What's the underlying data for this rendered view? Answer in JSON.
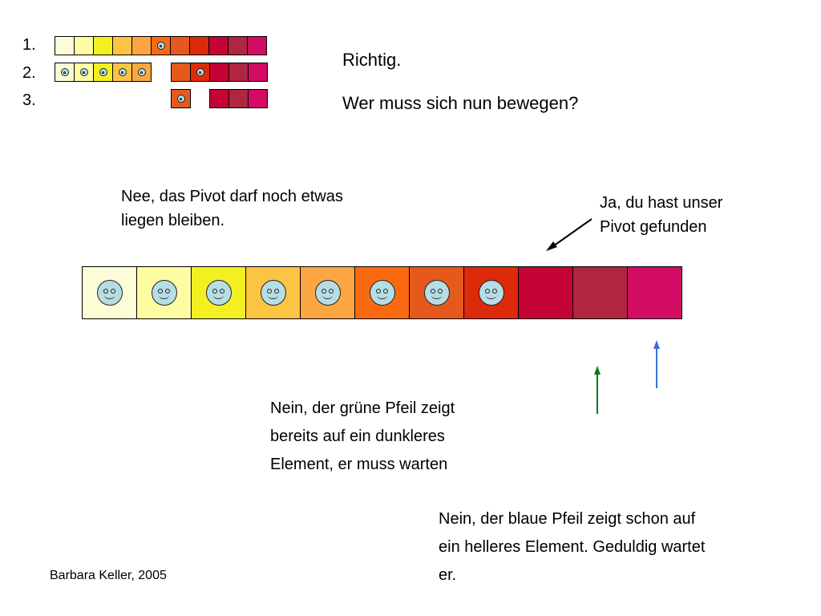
{
  "rows": {
    "labels": [
      "1.",
      "2.",
      "3."
    ]
  },
  "colors": {
    "shades": [
      "#fdfcd6",
      "#fdfca2",
      "#f3f022",
      "#fbc443",
      "#fba643",
      "#f96a10",
      "#e55a1c",
      "#dd2a0a",
      "#c50334",
      "#b02540",
      "#d20c62"
    ]
  },
  "headline": {
    "line1": "Richtig.",
    "line2": "Wer muss sich nun bewegen?"
  },
  "annotations": {
    "pivot_wait": [
      "Nee, das Pivot darf noch etwas",
      "liegen bleiben."
    ],
    "pivot_found": [
      "Ja, du hast unser",
      "Pivot gefunden"
    ],
    "green_arrow": [
      "Nein, der grüne Pfeil zeigt",
      "bereits auf ein dunkleres",
      "Element, er muss warten"
    ],
    "blue_arrow": [
      "Nein, der blaue Pfeil zeigt schon auf",
      "ein helleres Element. Geduldig wartet",
      "er."
    ]
  },
  "arrow_colors": {
    "green": "#0a7a1f",
    "blue": "#3a6fd8"
  },
  "footer": "Barbara Keller, 2005"
}
